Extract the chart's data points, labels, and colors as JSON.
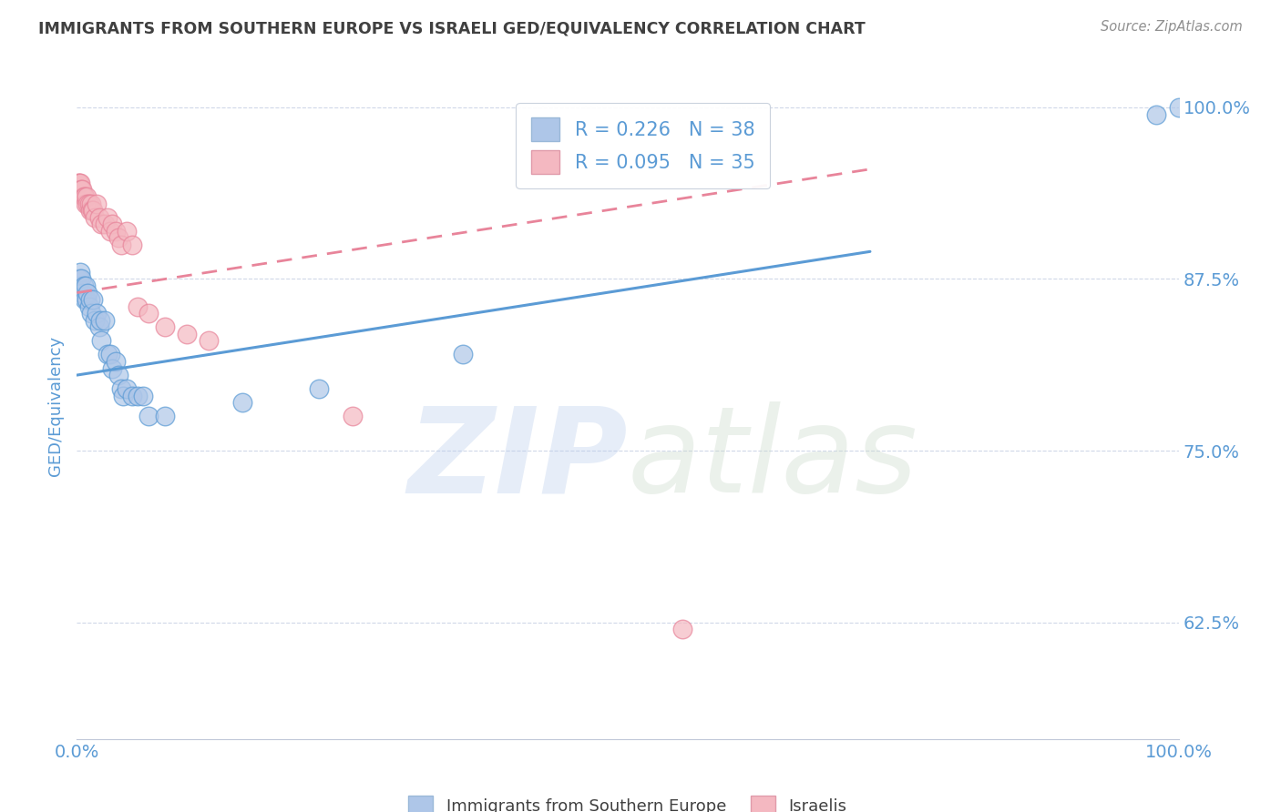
{
  "title": "IMMIGRANTS FROM SOUTHERN EUROPE VS ISRAELI GED/EQUIVALENCY CORRELATION CHART",
  "source_text": "Source: ZipAtlas.com",
  "ylabel": "GED/Equivalency",
  "xlim": [
    0.0,
    1.0
  ],
  "ylim": [
    0.54,
    1.025
  ],
  "x_ticks": [
    0.0,
    0.25,
    0.5,
    0.75,
    1.0
  ],
  "x_tick_labels": [
    "0.0%",
    "",
    "",
    "",
    "100.0%"
  ],
  "y_tick_labels": [
    "62.5%",
    "75.0%",
    "87.5%",
    "100.0%"
  ],
  "y_ticks": [
    0.625,
    0.75,
    0.875,
    1.0
  ],
  "legend_entries": [
    {
      "label": "R = 0.226   N = 38",
      "color": "#aec6e8"
    },
    {
      "label": "R = 0.095   N = 35",
      "color": "#f4b8c1"
    }
  ],
  "blue_scatter_x": [
    0.001,
    0.002,
    0.003,
    0.004,
    0.005,
    0.006,
    0.007,
    0.008,
    0.009,
    0.01,
    0.011,
    0.012,
    0.013,
    0.015,
    0.016,
    0.018,
    0.02,
    0.021,
    0.022,
    0.025,
    0.028,
    0.03,
    0.032,
    0.035,
    0.038,
    0.04,
    0.042,
    0.045,
    0.05,
    0.055,
    0.06,
    0.065,
    0.08,
    0.15,
    0.22,
    0.35,
    0.98,
    1.0
  ],
  "blue_scatter_y": [
    0.87,
    0.875,
    0.88,
    0.875,
    0.865,
    0.87,
    0.86,
    0.87,
    0.86,
    0.865,
    0.855,
    0.86,
    0.85,
    0.86,
    0.845,
    0.85,
    0.84,
    0.845,
    0.83,
    0.845,
    0.82,
    0.82,
    0.81,
    0.815,
    0.805,
    0.795,
    0.79,
    0.795,
    0.79,
    0.79,
    0.79,
    0.775,
    0.775,
    0.785,
    0.795,
    0.82,
    0.995,
    1.0
  ],
  "pink_scatter_x": [
    0.001,
    0.002,
    0.003,
    0.004,
    0.005,
    0.006,
    0.007,
    0.008,
    0.009,
    0.01,
    0.011,
    0.012,
    0.013,
    0.014,
    0.015,
    0.016,
    0.018,
    0.02,
    0.022,
    0.025,
    0.028,
    0.03,
    0.032,
    0.035,
    0.038,
    0.04,
    0.045,
    0.05,
    0.055,
    0.065,
    0.08,
    0.1,
    0.12,
    0.25,
    0.55
  ],
  "pink_scatter_y": [
    0.945,
    0.945,
    0.945,
    0.94,
    0.94,
    0.935,
    0.935,
    0.93,
    0.935,
    0.93,
    0.93,
    0.925,
    0.93,
    0.925,
    0.925,
    0.92,
    0.93,
    0.92,
    0.915,
    0.915,
    0.92,
    0.91,
    0.915,
    0.91,
    0.905,
    0.9,
    0.91,
    0.9,
    0.855,
    0.85,
    0.84,
    0.835,
    0.83,
    0.775,
    0.62
  ],
  "blue_line_x": [
    0.0,
    0.72
  ],
  "blue_line_y": [
    0.805,
    0.895
  ],
  "pink_line_x": [
    0.0,
    0.72
  ],
  "pink_line_y": [
    0.865,
    0.955
  ],
  "blue_color": "#5b9bd5",
  "pink_color": "#e8849a",
  "blue_fill": "#aec6e8",
  "pink_fill": "#f4b8c1",
  "watermark_zip": "ZIP",
  "watermark_atlas": "atlas",
  "title_color": "#404040",
  "axis_label_color": "#5b9bd5",
  "tick_color": "#5b9bd5",
  "background_color": "#ffffff",
  "grid_color": "#d0d8e8"
}
